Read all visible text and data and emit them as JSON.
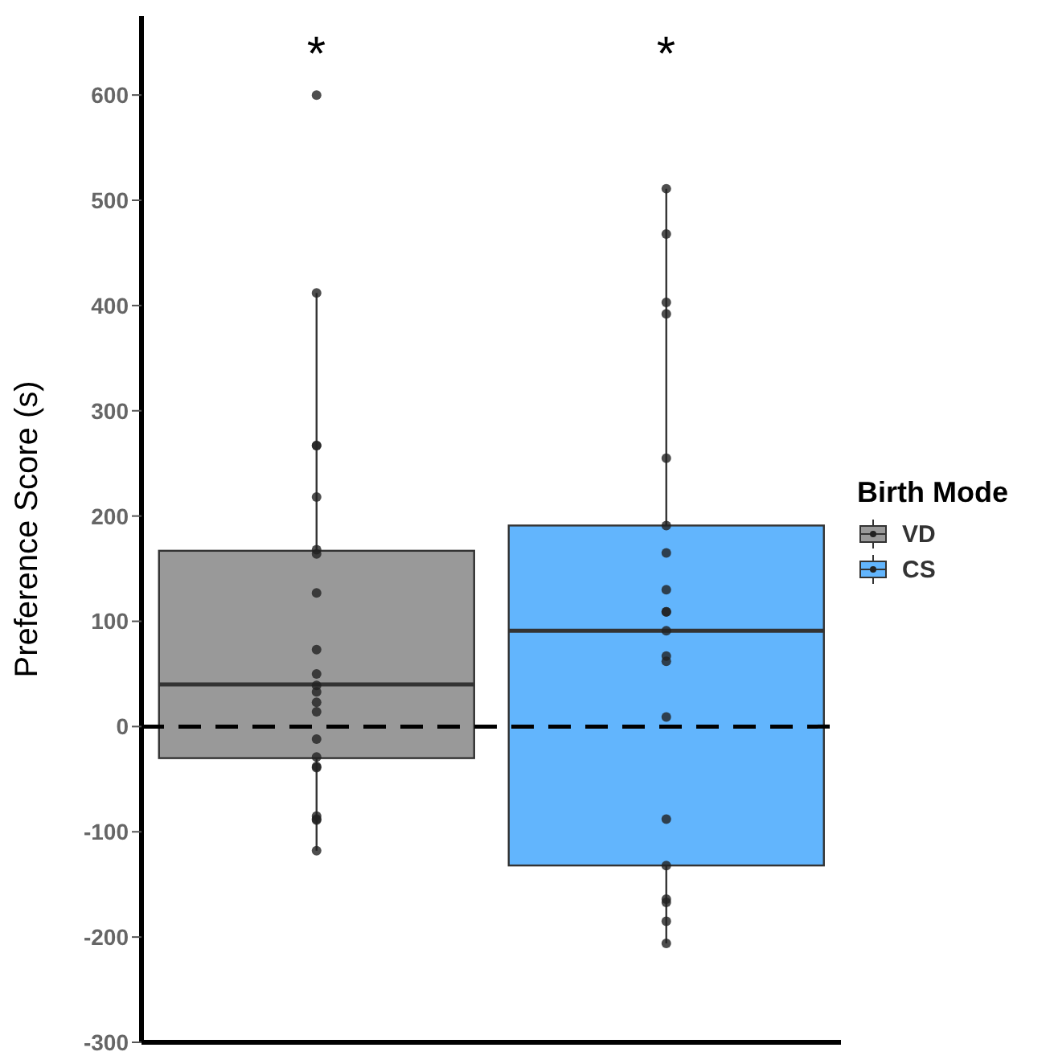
{
  "chart_data": {
    "type": "box",
    "ylabel": "Preference Score (s)",
    "legend_title": "Birth Mode",
    "categories": [
      null,
      null
    ],
    "tick_labels": "y",
    "ylim": [
      -300,
      675
    ],
    "yticks": [
      -300,
      -200,
      -100,
      0,
      100,
      200,
      300,
      400,
      500,
      600
    ],
    "grid": false,
    "legend": "right",
    "series": [
      {
        "name": "VD",
        "color": "#999999",
        "boxes": [
          {
            "low": -118,
            "q1": -30,
            "median": 40,
            "q3": 167,
            "high": 412,
            "outliers": [
              600,
              412,
              267,
              267,
              218,
              168,
              164,
              127,
              73,
              50,
              39,
              33,
              23,
              14,
              -12,
              -29,
              -38,
              -39,
              -85,
              -88,
              -89,
              -118
            ]
          },
          null
        ]
      },
      {
        "name": "CS",
        "color": "#62b5fd",
        "boxes": [
          null,
          {
            "low": -206,
            "q1": -132,
            "median": 91,
            "q3": 191,
            "high": 511,
            "outliers": [
              511,
              468,
              403,
              392,
              255,
              191,
              165,
              130,
              109,
              109,
              91,
              67,
              62,
              9,
              -88,
              -132,
              -164,
              -167,
              -185,
              -206
            ]
          }
        ]
      }
    ],
    "ref_lines": [
      {
        "axis": "y",
        "value": 0,
        "color": "#000000",
        "line_style": "dashed"
      }
    ],
    "annotations": [
      "*",
      "*"
    ]
  }
}
